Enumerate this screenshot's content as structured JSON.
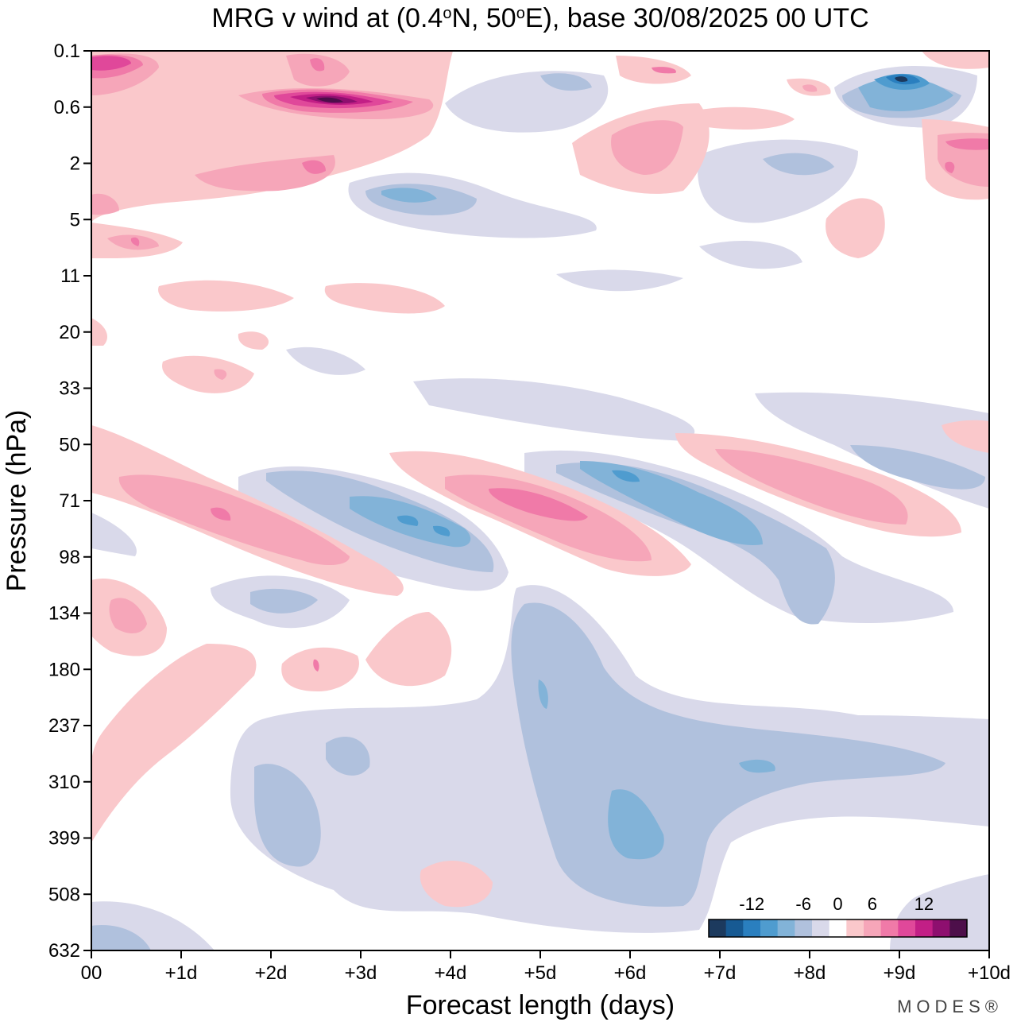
{
  "chart_data": {
    "type": "contour",
    "title": "MRG v wind at (0.4°N, 50°E),  base 30/08/2025  00 UTC",
    "xlabel": "Forecast length (days)",
    "ylabel": "Pressure (hPa)",
    "x_ticks": [
      "00",
      "+1d",
      "+2d",
      "+3d",
      "+4d",
      "+5d",
      "+6d",
      "+7d",
      "+8d",
      "+9d",
      "+10d"
    ],
    "xlim": [
      0,
      10
    ],
    "y_ticks": [
      "0.1",
      "0.6",
      "2",
      "5",
      "11",
      "20",
      "33",
      "50",
      "71",
      "98",
      "134",
      "180",
      "237",
      "310",
      "399",
      "508",
      "632"
    ],
    "colorbar": {
      "tick_labels": [
        "-12",
        "-6",
        "0",
        "6",
        "12"
      ],
      "levels": [
        -16,
        -14,
        -12,
        -10,
        -8,
        -6,
        -4,
        -2,
        2,
        4,
        6,
        8,
        10,
        12,
        14,
        16
      ],
      "colors": [
        "#1c3a5e",
        "#175a93",
        "#2a7fbf",
        "#4f9ccf",
        "#82b3d8",
        "#b0c1dd",
        "#d9d9ea",
        "#ffffff",
        "#fac8cb",
        "#f6a6b9",
        "#f07aa8",
        "#e0489a",
        "#c21f86",
        "#8e0f6f",
        "#4d0f4a"
      ]
    },
    "features": [
      {
        "name": "easterly-phase-positive-band-1",
        "sign": "positive",
        "peak": 6,
        "x_range": [
          0.3,
          2.6
        ],
        "pressure_range": [
          60,
          110
        ]
      },
      {
        "name": "westerly-phase-negative-band-1",
        "sign": "negative",
        "peak": -6,
        "x_range": [
          2.0,
          4.5
        ],
        "pressure_range": [
          55,
          105
        ]
      },
      {
        "name": "easterly-phase-positive-band-2",
        "sign": "positive",
        "peak": 8,
        "x_range": [
          3.4,
          6.5
        ],
        "pressure_range": [
          55,
          110
        ]
      },
      {
        "name": "westerly-phase-negative-band-2",
        "sign": "negative",
        "peak": -6,
        "x_range": [
          5.3,
          8.3
        ],
        "pressure_range": [
          55,
          150
        ]
      },
      {
        "name": "easterly-phase-positive-band-3",
        "sign": "positive",
        "peak": 6,
        "x_range": [
          6.9,
          9.7
        ],
        "pressure_range": [
          50,
          95
        ]
      },
      {
        "name": "stratospheric-positive-maximum",
        "sign": "positive",
        "peak": 16,
        "x_range": [
          1.8,
          3.9
        ],
        "pressure_range": [
          0.3,
          0.8
        ]
      },
      {
        "name": "stratospheric-negative-maximum",
        "sign": "negative",
        "peak": -16,
        "x_range": [
          8.3,
          9.6
        ],
        "pressure_range": [
          0.2,
          0.8
        ]
      },
      {
        "name": "upper-tropospheric-negative-region",
        "sign": "negative",
        "peak": -6,
        "x_range": [
          1.8,
          9.5
        ],
        "pressure_range": [
          200,
          550
        ]
      }
    ]
  },
  "brand": "MODES®"
}
